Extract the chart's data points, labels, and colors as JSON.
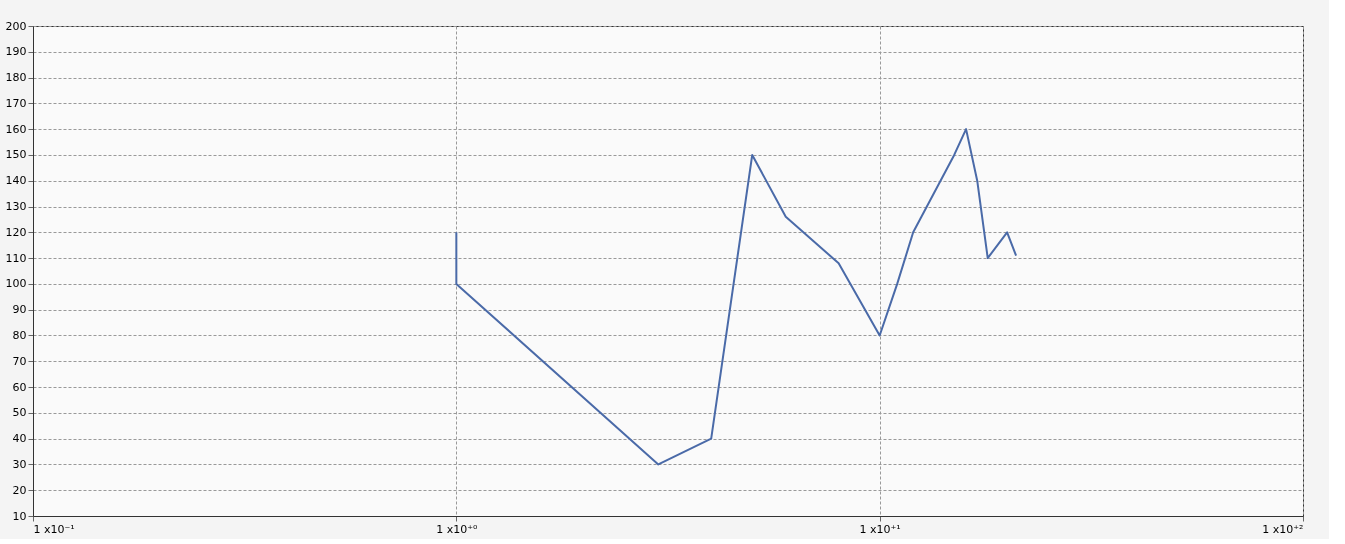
{
  "chart_data": {
    "type": "line",
    "log": "x",
    "grid": true,
    "marker": "none",
    "line_style": "solid",
    "x": [
      1,
      1,
      3,
      4,
      5,
      6,
      8,
      10,
      11,
      12,
      15,
      16,
      17,
      18,
      20,
      21
    ],
    "series": [
      {
        "color": "#4a6aa8",
        "values": [
          120,
          100,
          30,
          40,
          150,
          126,
          108,
          80,
          100,
          120,
          150,
          160,
          140,
          110,
          120,
          111
        ]
      }
    ],
    "xlim": [
      0.1,
      100
    ],
    "xticks": [
      {
        "value": 0.1,
        "label": "1 x10⁻¹"
      },
      {
        "value": 1,
        "label": "1 x10⁺⁰"
      },
      {
        "value": 10,
        "label": "1 x10⁺¹"
      },
      {
        "value": 100,
        "label": "1 x10⁺²"
      }
    ],
    "ylim": [
      10,
      200
    ],
    "yticks": [
      10,
      20,
      30,
      40,
      50,
      60,
      70,
      80,
      90,
      100,
      110,
      120,
      130,
      140,
      150,
      160,
      170,
      180,
      190,
      200
    ]
  }
}
